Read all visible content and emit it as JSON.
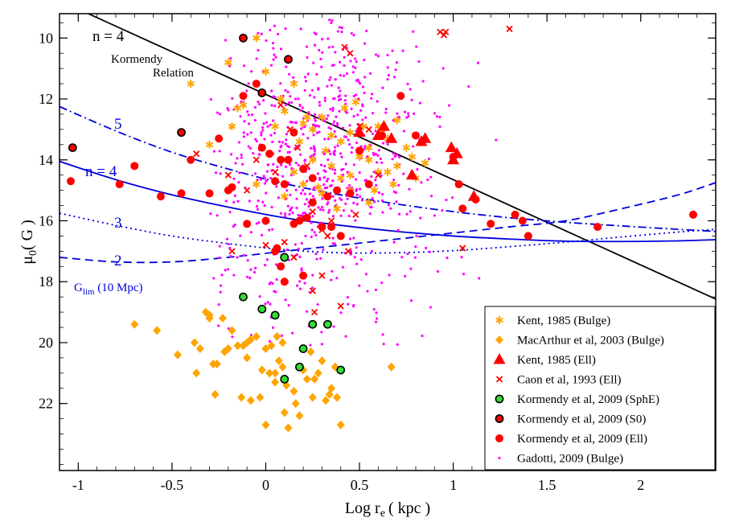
{
  "chart_data": {
    "type": "scatter",
    "xlabel": "Log r",
    "xlabel_sub": "e",
    "xlabel_unit": "( kpc )",
    "ylabel": "μ",
    "ylabel_sub": "0",
    "ylabel_unit": "( G )",
    "xlim": [
      -1.1,
      2.4
    ],
    "ylim": [
      9.2,
      24.2
    ],
    "y_inverted": true,
    "x_ticks": [
      -1,
      -0.5,
      0,
      0.5,
      1,
      1.5,
      2
    ],
    "x_tick_labels": [
      "-1",
      "-0.5",
      "0",
      "0.5",
      "1",
      "1.5",
      "2"
    ],
    "y_ticks": [
      10,
      12,
      14,
      16,
      18,
      20,
      22
    ],
    "y_tick_labels": [
      "10",
      "12",
      "14",
      "16",
      "18",
      "20",
      "22"
    ],
    "grid": false,
    "legend_position": "bottom-right",
    "annotations": {
      "kormendy_n": "n = 4",
      "kormendy_line1": "Kormendy",
      "kormendy_line2": "Relation",
      "n5": "5",
      "n4": "n = 4",
      "n3": "3",
      "n2": "2",
      "glim": "G",
      "glim_sub": "lim",
      "glim_rest": " (10 Mpc)"
    },
    "colors": {
      "orange": "#ffa500",
      "red": "#ff0000",
      "green": "#33dd33",
      "magenta": "#ff00ff",
      "blue": "#0000dd",
      "black": "#000000"
    },
    "kormendy_relation": {
      "x": [
        -1.1,
        2.4
      ],
      "y": [
        8.77,
        18.57
      ]
    },
    "curves": [
      {
        "label": "5",
        "style": "dashdot",
        "x": [
          -1.1,
          -0.8,
          -0.5,
          -0.2,
          0.1,
          0.4,
          0.7,
          1.0,
          1.3,
          1.6,
          1.9,
          2.2,
          2.4
        ],
        "y": [
          12.25,
          13.05,
          13.75,
          14.3,
          14.78,
          15.15,
          15.45,
          15.7,
          15.9,
          16.05,
          16.17,
          16.28,
          16.35
        ]
      },
      {
        "label": "n = 4",
        "style": "solid",
        "x": [
          -1.1,
          -0.8,
          -0.5,
          -0.2,
          0.1,
          0.4,
          0.7,
          1.0,
          1.3,
          1.6,
          1.9,
          2.2,
          2.4
        ],
        "y": [
          14.05,
          14.65,
          15.15,
          15.55,
          15.9,
          16.15,
          16.35,
          16.5,
          16.6,
          16.67,
          16.68,
          16.66,
          16.62
        ]
      },
      {
        "label": "3",
        "style": "dotted",
        "x": [
          -1.1,
          -0.8,
          -0.5,
          -0.2,
          0.1,
          0.4,
          0.7,
          1.0,
          1.3,
          1.6,
          1.9,
          2.2,
          2.4
        ],
        "y": [
          15.75,
          16.15,
          16.5,
          16.75,
          16.95,
          17.05,
          17.05,
          16.98,
          16.85,
          16.7,
          16.53,
          16.37,
          16.28
        ]
      },
      {
        "label": "2",
        "style": "dashed",
        "x": [
          -1.1,
          -0.8,
          -0.5,
          -0.2,
          0.1,
          0.4,
          0.7,
          1.0,
          1.3,
          1.6,
          1.9,
          2.2,
          2.4
        ],
        "y": [
          17.2,
          17.35,
          17.35,
          17.2,
          17.0,
          16.8,
          16.6,
          16.4,
          16.2,
          16.0,
          15.6,
          15.15,
          14.75
        ]
      }
    ],
    "series": [
      {
        "name": "Kent, 1985 (Bulge)",
        "marker": "asterisk",
        "color": "#ffa500",
        "x": [
          -0.05,
          -0.4,
          -0.2,
          -0.15,
          -0.3,
          0.0,
          0.1,
          0.15,
          0.2,
          0.25,
          0.3,
          0.35,
          0.4,
          0.45,
          0.5,
          0.55,
          0.6,
          0.65,
          0.7,
          0.75,
          0.8,
          0.85,
          0.15,
          0.2,
          0.3,
          0.45,
          0.55,
          0.35,
          0.25,
          0.05,
          -0.05,
          0.1,
          0.4,
          0.5,
          0.6,
          0.7,
          0.32,
          0.42,
          0.52,
          0.62,
          0.28,
          0.38,
          0.48,
          0.58,
          0.68,
          0.78,
          -0.12,
          -0.18,
          0.18,
          0.08,
          0.22,
          0.45,
          0.55,
          0.65
        ],
        "y": [
          10.0,
          11.5,
          10.8,
          12.3,
          13.5,
          11.1,
          12.4,
          11.5,
          12.8,
          13.0,
          12.6,
          13.2,
          13.4,
          13.1,
          13.8,
          14.0,
          12.9,
          13.3,
          14.2,
          13.6,
          14.6,
          14.1,
          14.4,
          14.8,
          15.1,
          15.0,
          15.4,
          14.2,
          14.0,
          12.9,
          14.8,
          15.2,
          14.6,
          13.9,
          14.4,
          12.7,
          13.7,
          12.3,
          12.9,
          13.1,
          14.9,
          15.6,
          12.1,
          15.0,
          14.8,
          13.9,
          12.2,
          12.9,
          13.4,
          12.0,
          12.6,
          14.5,
          13.6,
          14.4
        ]
      },
      {
        "name": "MacArthur et al, 2003 (Bulge)",
        "marker": "diamond",
        "color": "#ffa500",
        "x": [
          -0.7,
          -0.58,
          -0.47,
          -0.38,
          -0.37,
          -0.35,
          -0.32,
          -0.3,
          -0.28,
          -0.26,
          -0.23,
          -0.2,
          -0.15,
          -0.13,
          -0.12,
          -0.1,
          -0.08,
          -0.05,
          -0.03,
          0.0,
          0.02,
          0.05,
          0.07,
          0.09,
          0.1,
          0.12,
          0.15,
          0.18,
          0.2,
          0.22,
          0.25,
          0.28,
          0.3,
          0.32,
          0.35,
          0.37,
          0.4,
          0.67,
          -0.22,
          -0.18,
          -0.08,
          -0.02,
          0.03,
          0.06,
          0.11,
          0.16,
          0.26,
          0.34,
          0.38,
          -0.3,
          -0.27,
          0.0,
          0.05,
          0.09,
          -0.1,
          0.24
        ],
        "y": [
          19.4,
          19.6,
          20.4,
          20.0,
          21.0,
          20.2,
          19.0,
          19.2,
          20.7,
          20.7,
          19.2,
          20.2,
          20.1,
          21.8,
          20.1,
          20.0,
          21.9,
          19.8,
          21.8,
          22.7,
          21.0,
          21.3,
          20.6,
          20.8,
          22.3,
          22.8,
          21.6,
          22.4,
          20.9,
          21.2,
          21.8,
          21.0,
          20.6,
          21.9,
          21.5,
          20.8,
          22.7,
          20.8,
          20.3,
          19.6,
          19.9,
          20.9,
          20.1,
          19.8,
          21.4,
          22.0,
          21.2,
          21.7,
          21.8,
          19.1,
          21.7,
          20.2,
          21.0,
          20.0,
          20.5,
          20.3
        ]
      },
      {
        "name": "Kent, 1985 (Ell)",
        "marker": "triangle",
        "color": "#ff0000",
        "x": [
          0.5,
          0.6,
          0.63,
          0.67,
          0.78,
          0.83,
          0.85,
          0.99,
          1.0,
          1.02,
          1.11
        ],
        "y": [
          13.1,
          13.2,
          12.9,
          13.3,
          14.5,
          13.4,
          13.3,
          13.6,
          14.0,
          13.8,
          15.2
        ]
      },
      {
        "name": "Caon et al, 1993 (Ell)",
        "marker": "cross",
        "color": "#ff0000",
        "x": [
          -0.37,
          -0.2,
          -0.1,
          -0.05,
          0.08,
          0.13,
          0.17,
          0.22,
          0.25,
          0.3,
          0.35,
          0.4,
          0.42,
          0.45,
          0.5,
          0.55,
          0.6,
          0.93,
          0.95,
          0.96,
          1.05,
          1.3,
          0.1,
          0.2,
          0.25,
          0.05,
          -0.18,
          0.0,
          0.15,
          0.3,
          0.33,
          0.44,
          0.48,
          0.26
        ],
        "y": [
          13.8,
          14.5,
          15.0,
          14.0,
          12.2,
          13.0,
          13.6,
          14.2,
          15.7,
          16.3,
          16.0,
          18.8,
          10.3,
          10.5,
          12.9,
          13.0,
          14.5,
          9.8,
          9.9,
          9.8,
          16.9,
          9.7,
          16.7,
          15.9,
          18.3,
          14.4,
          17.0,
          16.8,
          17.2,
          17.8,
          16.5,
          17.0,
          15.8,
          19.0
        ]
      },
      {
        "name": "Kormendy et al, 2009 (SphE)",
        "marker": "circle-outline",
        "color": "#33dd33",
        "x": [
          -0.12,
          -0.02,
          0.05,
          0.1,
          0.1,
          0.18,
          0.2,
          0.25,
          0.33,
          0.4
        ],
        "y": [
          18.5,
          18.9,
          19.1,
          17.2,
          21.2,
          20.8,
          20.2,
          19.4,
          19.4,
          20.9
        ]
      },
      {
        "name": "Kormendy et al, 2009 (S0)",
        "marker": "circle-outline",
        "color": "#ff0000",
        "x": [
          -1.03,
          -0.45,
          -0.12,
          -0.02,
          0.12
        ],
        "y": [
          13.6,
          13.1,
          10.0,
          11.8,
          10.7
        ]
      },
      {
        "name": "Kormendy et al, 2009 (Ell)",
        "marker": "circle",
        "color": "#ff0000",
        "x": [
          -1.04,
          -0.78,
          -0.7,
          -0.56,
          -0.45,
          -0.4,
          -0.3,
          -0.25,
          -0.2,
          -0.18,
          -0.12,
          -0.1,
          -0.05,
          -0.02,
          0.02,
          0.05,
          0.06,
          0.08,
          0.1,
          0.12,
          0.15,
          0.18,
          0.2,
          0.22,
          0.25,
          0.3,
          0.33,
          0.38,
          0.4,
          0.5,
          0.55,
          0.62,
          0.72,
          0.8,
          1.0,
          1.03,
          1.05,
          1.12,
          1.2,
          1.33,
          1.37,
          1.4,
          1.77,
          2.28,
          0.0,
          0.1,
          0.2,
          0.08,
          0.15,
          0.25,
          0.05,
          0.35,
          0.45
        ],
        "y": [
          14.7,
          14.8,
          14.2,
          15.2,
          15.1,
          14.0,
          15.1,
          13.3,
          15.0,
          14.9,
          11.9,
          16.1,
          11.5,
          13.6,
          13.8,
          14.7,
          16.9,
          14.0,
          18.0,
          14.0,
          13.1,
          16.0,
          17.8,
          15.9,
          14.6,
          16.2,
          15.2,
          15.0,
          16.5,
          13.7,
          14.8,
          13.2,
          11.9,
          13.2,
          13.9,
          14.8,
          15.6,
          15.3,
          16.1,
          15.8,
          16.0,
          16.5,
          16.2,
          15.8,
          16.0,
          14.8,
          14.3,
          17.5,
          16.1,
          15.4,
          17.0,
          16.2,
          15.1
        ]
      },
      {
        "name": "Gadotti, 2009 (Bulge)",
        "marker": "dot",
        "color": "#ff00ff",
        "generated_count": 750
      }
    ]
  }
}
